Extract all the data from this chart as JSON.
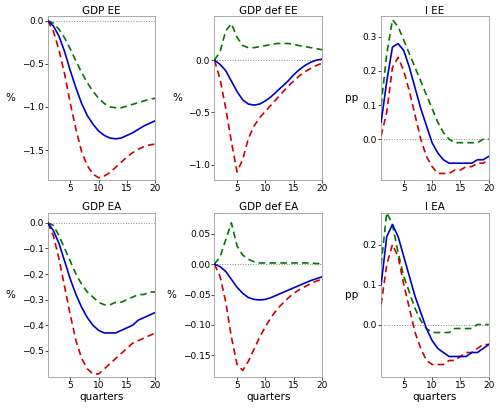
{
  "titles": [
    "GDP EE",
    "GDP def EE",
    "I EE",
    "GDP EA",
    "GDP def EA",
    "I EA"
  ],
  "ylabels": [
    "%",
    "%",
    "pp",
    "%",
    "%",
    "pp"
  ],
  "xlim": [
    1,
    20
  ],
  "xticks": [
    5,
    10,
    15,
    20
  ],
  "panels": {
    "GDP_EE": {
      "ylim": [
        -1.85,
        0.05
      ],
      "yticks": [
        0,
        -0.5,
        -1.0,
        -1.5
      ],
      "blue": [
        0,
        -0.06,
        -0.18,
        -0.36,
        -0.58,
        -0.78,
        -0.96,
        -1.1,
        -1.2,
        -1.28,
        -1.33,
        -1.36,
        -1.37,
        -1.36,
        -1.33,
        -1.3,
        -1.26,
        -1.22,
        -1.19,
        -1.16
      ],
      "green": [
        0,
        -0.03,
        -0.1,
        -0.2,
        -0.33,
        -0.47,
        -0.6,
        -0.72,
        -0.82,
        -0.9,
        -0.96,
        -1.0,
        -1.01,
        -1.01,
        -0.99,
        -0.97,
        -0.95,
        -0.93,
        -0.91,
        -0.9
      ],
      "red": [
        0,
        -0.12,
        -0.34,
        -0.62,
        -0.96,
        -1.26,
        -1.52,
        -1.68,
        -1.78,
        -1.82,
        -1.8,
        -1.76,
        -1.7,
        -1.64,
        -1.58,
        -1.53,
        -1.49,
        -1.46,
        -1.44,
        -1.43
      ]
    },
    "GDPdef_EE": {
      "ylim": [
        -1.15,
        0.42
      ],
      "yticks": [
        0,
        -0.5,
        -1.0
      ],
      "blue": [
        0,
        -0.04,
        -0.1,
        -0.2,
        -0.3,
        -0.38,
        -0.42,
        -0.43,
        -0.42,
        -0.39,
        -0.35,
        -0.3,
        -0.25,
        -0.2,
        -0.14,
        -0.09,
        -0.05,
        -0.02,
        0.0,
        0.01
      ],
      "green": [
        0,
        0.08,
        0.28,
        0.35,
        0.22,
        0.14,
        0.12,
        0.12,
        0.13,
        0.14,
        0.15,
        0.16,
        0.16,
        0.16,
        0.15,
        0.14,
        0.13,
        0.12,
        0.11,
        0.1
      ],
      "red": [
        0,
        -0.18,
        -0.46,
        -0.78,
        -1.07,
        -0.95,
        -0.75,
        -0.63,
        -0.55,
        -0.49,
        -0.43,
        -0.37,
        -0.31,
        -0.25,
        -0.2,
        -0.15,
        -0.11,
        -0.08,
        -0.05,
        -0.03
      ]
    },
    "I_EE": {
      "ylim": [
        -0.12,
        0.36
      ],
      "yticks": [
        0,
        0.1,
        0.2,
        0.3
      ],
      "blue": [
        0.05,
        0.17,
        0.27,
        0.28,
        0.26,
        0.21,
        0.15,
        0.09,
        0.04,
        -0.01,
        -0.04,
        -0.06,
        -0.07,
        -0.07,
        -0.07,
        -0.07,
        -0.07,
        -0.06,
        -0.06,
        -0.05
      ],
      "green": [
        0.1,
        0.25,
        0.35,
        0.33,
        0.29,
        0.25,
        0.21,
        0.17,
        0.13,
        0.09,
        0.05,
        0.02,
        0.0,
        -0.01,
        -0.01,
        -0.01,
        -0.01,
        -0.01,
        0.0,
        0.0
      ],
      "red": [
        0.01,
        0.08,
        0.21,
        0.24,
        0.2,
        0.14,
        0.07,
        0.0,
        -0.05,
        -0.08,
        -0.1,
        -0.1,
        -0.1,
        -0.09,
        -0.09,
        -0.08,
        -0.08,
        -0.07,
        -0.07,
        -0.06
      ]
    },
    "GDP_EA": {
      "ylim": [
        -0.6,
        0.04
      ],
      "yticks": [
        0,
        -0.1,
        -0.2,
        -0.3,
        -0.4,
        -0.5
      ],
      "blue": [
        0,
        -0.03,
        -0.08,
        -0.15,
        -0.22,
        -0.28,
        -0.33,
        -0.37,
        -0.4,
        -0.42,
        -0.43,
        -0.43,
        -0.43,
        -0.42,
        -0.41,
        -0.4,
        -0.38,
        -0.37,
        -0.36,
        -0.35
      ],
      "green": [
        0,
        -0.01,
        -0.05,
        -0.1,
        -0.15,
        -0.2,
        -0.24,
        -0.27,
        -0.29,
        -0.31,
        -0.32,
        -0.32,
        -0.31,
        -0.31,
        -0.3,
        -0.29,
        -0.28,
        -0.28,
        -0.27,
        -0.27
      ],
      "red": [
        0,
        -0.05,
        -0.14,
        -0.25,
        -0.36,
        -0.46,
        -0.53,
        -0.57,
        -0.59,
        -0.59,
        -0.57,
        -0.55,
        -0.53,
        -0.51,
        -0.49,
        -0.47,
        -0.46,
        -0.45,
        -0.44,
        -0.43
      ]
    },
    "GDPdef_EA": {
      "ylim": [
        -0.185,
        0.085
      ],
      "yticks": [
        0.05,
        0,
        -0.05,
        -0.1,
        -0.15
      ],
      "blue": [
        0,
        -0.004,
        -0.012,
        -0.025,
        -0.038,
        -0.048,
        -0.055,
        -0.058,
        -0.059,
        -0.058,
        -0.055,
        -0.051,
        -0.047,
        -0.043,
        -0.039,
        -0.035,
        -0.031,
        -0.027,
        -0.024,
        -0.021
      ],
      "green": [
        0,
        0.012,
        0.04,
        0.068,
        0.03,
        0.015,
        0.008,
        0.004,
        0.002,
        0.002,
        0.002,
        0.002,
        0.002,
        0.002,
        0.002,
        0.002,
        0.002,
        0.002,
        0.001,
        0.001
      ],
      "red": [
        0,
        -0.02,
        -0.062,
        -0.12,
        -0.165,
        -0.175,
        -0.16,
        -0.14,
        -0.12,
        -0.103,
        -0.088,
        -0.075,
        -0.065,
        -0.056,
        -0.048,
        -0.042,
        -0.037,
        -0.032,
        -0.028,
        -0.025
      ]
    },
    "I_EA": {
      "ylim": [
        -0.13,
        0.28
      ],
      "yticks": [
        0,
        0.1,
        0.2
      ],
      "blue": [
        0.1,
        0.22,
        0.25,
        0.22,
        0.17,
        0.12,
        0.07,
        0.03,
        -0.01,
        -0.04,
        -0.06,
        -0.07,
        -0.08,
        -0.08,
        -0.08,
        -0.08,
        -0.07,
        -0.07,
        -0.06,
        -0.05
      ],
      "green": [
        0.15,
        0.28,
        0.25,
        0.18,
        0.12,
        0.08,
        0.04,
        0.01,
        -0.01,
        -0.02,
        -0.02,
        -0.02,
        -0.02,
        -0.01,
        -0.01,
        -0.01,
        -0.01,
        0.0,
        0.0,
        0.0
      ],
      "red": [
        0.05,
        0.15,
        0.2,
        0.17,
        0.1,
        0.04,
        -0.02,
        -0.06,
        -0.09,
        -0.1,
        -0.1,
        -0.1,
        -0.09,
        -0.09,
        -0.08,
        -0.07,
        -0.07,
        -0.06,
        -0.05,
        -0.05
      ]
    }
  },
  "xlabel": "quarters",
  "fig_bg": "#ffffff",
  "ax_bg": "#ffffff",
  "zero_line_color": "#888888",
  "zero_line_style": ":",
  "blue_color": "#0000cc",
  "green_color": "#007700",
  "red_color": "#cc0000",
  "line_width": 1.2
}
